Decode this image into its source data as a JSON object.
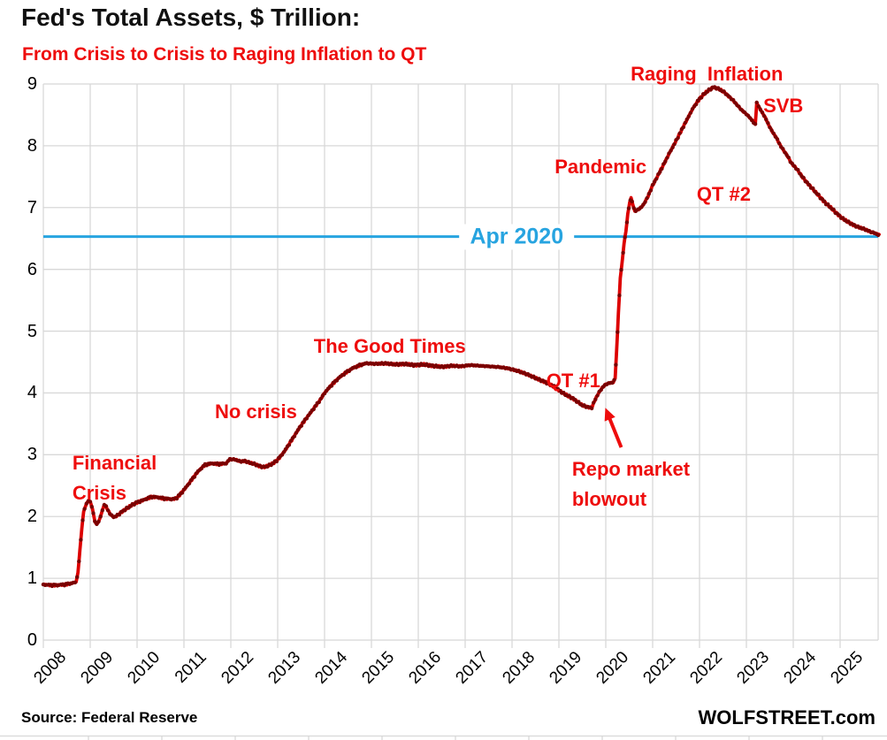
{
  "header": {
    "title": "Fed's Total Assets, $ Trillion:",
    "subtitle": "From Crisis to Crisis to Raging Inflation to QT"
  },
  "footer": {
    "source": "Source: Federal Reserve",
    "brand": "WOLFSTREET.com"
  },
  "colors": {
    "line": "#dd0000",
    "marker": "#7a0000",
    "annotation_red": "#ee0d0d",
    "reference_blue": "#27a4e0",
    "grid": "#d8d8d8",
    "text": "#000000"
  },
  "chart_data": {
    "type": "line",
    "title": "Fed's Total Assets, $ Trillion:",
    "subtitle": "From Crisis to Crisis to Raging Inflation to QT",
    "source": "Federal Reserve",
    "unit": "$ trillion",
    "xlim": [
      2008,
      2025.85
    ],
    "ylim": [
      0,
      9
    ],
    "yticks": [
      0,
      1,
      2,
      3,
      4,
      5,
      6,
      7,
      8,
      9
    ],
    "xticks": [
      2008,
      2009,
      2010,
      2011,
      2012,
      2013,
      2014,
      2015,
      2016,
      2017,
      2018,
      2019,
      2020,
      2021,
      2022,
      2023,
      2024,
      2025
    ],
    "grid": true,
    "legend": "none",
    "reference_line": {
      "label": "Apr 2020",
      "value": 6.53,
      "label_x": 2018.1
    },
    "annotations": [
      {
        "id": "financial-crisis",
        "text": "Financial\nCrisis",
        "x": 2008.62,
        "y": 3.1
      },
      {
        "id": "no-crisis",
        "text": "No crisis",
        "x": 2011.66,
        "y": 3.93
      },
      {
        "id": "the-good-times",
        "text": "The Good Times",
        "x": 2013.77,
        "y": 5.0
      },
      {
        "id": "qt-1",
        "text": "QT #1",
        "x": 2018.73,
        "y": 4.43
      },
      {
        "id": "repo-market-blowout",
        "text": "Repo market\nblowout",
        "x": 2019.28,
        "y": 3.0
      },
      {
        "id": "pandemic",
        "text": "Pandemic",
        "x": 2018.91,
        "y": 7.9
      },
      {
        "id": "raging-inflation",
        "text": "Raging  Inflation",
        "x": 2020.53,
        "y": 9.4
      },
      {
        "id": "qt-2",
        "text": "QT #2",
        "x": 2021.94,
        "y": 7.45
      },
      {
        "id": "svb",
        "text": "SVB",
        "x": 2023.36,
        "y": 8.89
      }
    ],
    "arrow": {
      "from": [
        2020.33,
        3.12
      ],
      "to": [
        2019.99,
        3.76
      ]
    },
    "series": [
      {
        "name": "Fed total assets, $ trillions, weekly",
        "points": [
          [
            2008.0,
            0.9
          ],
          [
            2008.15,
            0.89
          ],
          [
            2008.3,
            0.89
          ],
          [
            2008.45,
            0.9
          ],
          [
            2008.6,
            0.92
          ],
          [
            2008.7,
            0.94
          ],
          [
            2008.74,
            1.1
          ],
          [
            2008.78,
            1.45
          ],
          [
            2008.82,
            1.8
          ],
          [
            2008.86,
            2.08
          ],
          [
            2008.92,
            2.21
          ],
          [
            2008.96,
            2.25
          ],
          [
            2009.0,
            2.24
          ],
          [
            2009.05,
            2.12
          ],
          [
            2009.1,
            1.92
          ],
          [
            2009.14,
            1.87
          ],
          [
            2009.2,
            1.95
          ],
          [
            2009.26,
            2.1
          ],
          [
            2009.3,
            2.19
          ],
          [
            2009.34,
            2.16
          ],
          [
            2009.4,
            2.07
          ],
          [
            2009.46,
            2.01
          ],
          [
            2009.52,
            1.99
          ],
          [
            2009.6,
            2.03
          ],
          [
            2009.68,
            2.08
          ],
          [
            2009.76,
            2.12
          ],
          [
            2009.84,
            2.16
          ],
          [
            2009.92,
            2.2
          ],
          [
            2010.0,
            2.23
          ],
          [
            2010.15,
            2.27
          ],
          [
            2010.3,
            2.32
          ],
          [
            2010.45,
            2.31
          ],
          [
            2010.6,
            2.29
          ],
          [
            2010.75,
            2.28
          ],
          [
            2010.85,
            2.3
          ],
          [
            2011.0,
            2.43
          ],
          [
            2011.15,
            2.58
          ],
          [
            2011.3,
            2.73
          ],
          [
            2011.45,
            2.84
          ],
          [
            2011.6,
            2.86
          ],
          [
            2011.75,
            2.85
          ],
          [
            2011.9,
            2.86
          ],
          [
            2011.98,
            2.93
          ],
          [
            2012.1,
            2.92
          ],
          [
            2012.2,
            2.89
          ],
          [
            2012.3,
            2.9
          ],
          [
            2012.4,
            2.87
          ],
          [
            2012.5,
            2.85
          ],
          [
            2012.6,
            2.82
          ],
          [
            2012.7,
            2.8
          ],
          [
            2012.8,
            2.82
          ],
          [
            2012.9,
            2.86
          ],
          [
            2013.0,
            2.92
          ],
          [
            2013.15,
            3.06
          ],
          [
            2013.3,
            3.24
          ],
          [
            2013.45,
            3.42
          ],
          [
            2013.6,
            3.58
          ],
          [
            2013.75,
            3.73
          ],
          [
            2013.9,
            3.88
          ],
          [
            2014.0,
            4.0
          ],
          [
            2014.15,
            4.13
          ],
          [
            2014.3,
            4.24
          ],
          [
            2014.45,
            4.33
          ],
          [
            2014.6,
            4.4
          ],
          [
            2014.75,
            4.45
          ],
          [
            2014.9,
            4.48
          ],
          [
            2015.1,
            4.47
          ],
          [
            2015.3,
            4.48
          ],
          [
            2015.5,
            4.46
          ],
          [
            2015.7,
            4.47
          ],
          [
            2015.9,
            4.45
          ],
          [
            2016.1,
            4.46
          ],
          [
            2016.3,
            4.44
          ],
          [
            2016.5,
            4.42
          ],
          [
            2016.7,
            4.44
          ],
          [
            2016.9,
            4.43
          ],
          [
            2017.1,
            4.45
          ],
          [
            2017.3,
            4.44
          ],
          [
            2017.5,
            4.43
          ],
          [
            2017.7,
            4.42
          ],
          [
            2017.9,
            4.4
          ],
          [
            2018.1,
            4.36
          ],
          [
            2018.3,
            4.31
          ],
          [
            2018.5,
            4.24
          ],
          [
            2018.7,
            4.18
          ],
          [
            2018.9,
            4.1
          ],
          [
            2019.1,
            3.99
          ],
          [
            2019.3,
            3.91
          ],
          [
            2019.5,
            3.8
          ],
          [
            2019.62,
            3.77
          ],
          [
            2019.7,
            3.76
          ],
          [
            2019.76,
            3.87
          ],
          [
            2019.84,
            3.99
          ],
          [
            2019.92,
            4.08
          ],
          [
            2020.0,
            4.14
          ],
          [
            2020.08,
            4.16
          ],
          [
            2020.16,
            4.17
          ],
          [
            2020.2,
            4.24
          ],
          [
            2020.23,
            4.67
          ],
          [
            2020.27,
            5.3
          ],
          [
            2020.31,
            5.86
          ],
          [
            2020.35,
            6.12
          ],
          [
            2020.39,
            6.42
          ],
          [
            2020.43,
            6.62
          ],
          [
            2020.47,
            6.9
          ],
          [
            2020.51,
            7.08
          ],
          [
            2020.54,
            7.16
          ],
          [
            2020.58,
            7.04
          ],
          [
            2020.62,
            6.94
          ],
          [
            2020.7,
            6.97
          ],
          [
            2020.8,
            7.04
          ],
          [
            2020.9,
            7.18
          ],
          [
            2021.0,
            7.36
          ],
          [
            2021.12,
            7.53
          ],
          [
            2021.25,
            7.72
          ],
          [
            2021.37,
            7.9
          ],
          [
            2021.5,
            8.08
          ],
          [
            2021.62,
            8.26
          ],
          [
            2021.75,
            8.45
          ],
          [
            2021.87,
            8.62
          ],
          [
            2022.0,
            8.76
          ],
          [
            2022.1,
            8.84
          ],
          [
            2022.2,
            8.9
          ],
          [
            2022.3,
            8.95
          ],
          [
            2022.38,
            8.93
          ],
          [
            2022.46,
            8.9
          ],
          [
            2022.54,
            8.86
          ],
          [
            2022.62,
            8.8
          ],
          [
            2022.7,
            8.75
          ],
          [
            2022.78,
            8.68
          ],
          [
            2022.86,
            8.61
          ],
          [
            2022.94,
            8.55
          ],
          [
            2023.02,
            8.5
          ],
          [
            2023.1,
            8.43
          ],
          [
            2023.17,
            8.37
          ],
          [
            2023.19,
            8.34
          ],
          [
            2023.22,
            8.7
          ],
          [
            2023.26,
            8.64
          ],
          [
            2023.32,
            8.56
          ],
          [
            2023.4,
            8.46
          ],
          [
            2023.48,
            8.33
          ],
          [
            2023.56,
            8.22
          ],
          [
            2023.64,
            8.13
          ],
          [
            2023.72,
            8.01
          ],
          [
            2023.8,
            7.92
          ],
          [
            2023.88,
            7.83
          ],
          [
            2023.96,
            7.72
          ],
          [
            2024.08,
            7.62
          ],
          [
            2024.2,
            7.49
          ],
          [
            2024.32,
            7.38
          ],
          [
            2024.44,
            7.28
          ],
          [
            2024.56,
            7.18
          ],
          [
            2024.68,
            7.08
          ],
          [
            2024.8,
            7.0
          ],
          [
            2024.92,
            6.91
          ],
          [
            2025.04,
            6.83
          ],
          [
            2025.16,
            6.77
          ],
          [
            2025.28,
            6.72
          ],
          [
            2025.4,
            6.68
          ],
          [
            2025.52,
            6.65
          ],
          [
            2025.64,
            6.61
          ],
          [
            2025.76,
            6.58
          ],
          [
            2025.83,
            6.56
          ]
        ]
      }
    ]
  }
}
